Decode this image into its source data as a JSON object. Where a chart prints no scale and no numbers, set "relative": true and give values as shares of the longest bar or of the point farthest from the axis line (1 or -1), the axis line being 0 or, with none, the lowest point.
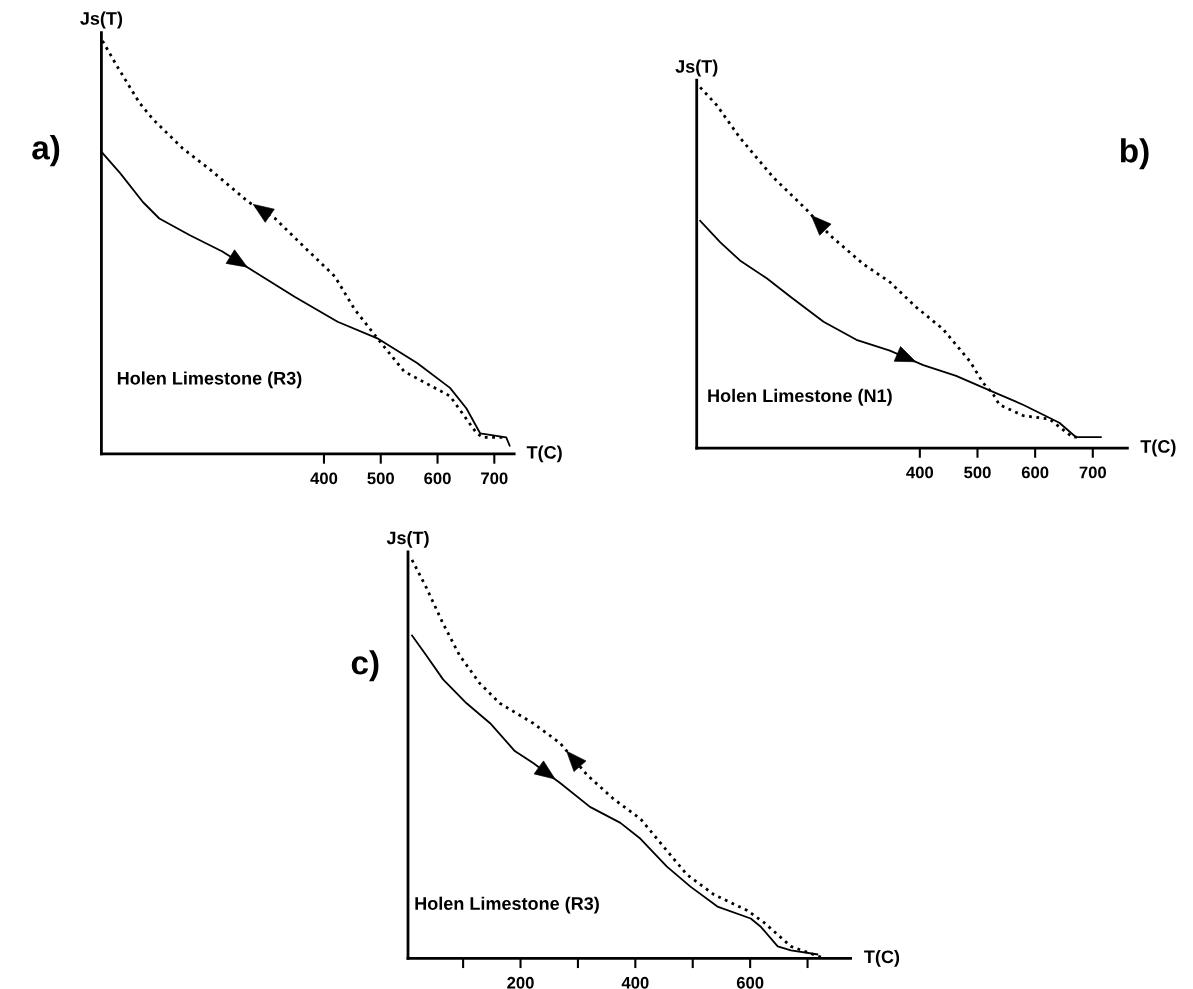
{
  "chart_data": [
    {
      "type": "line",
      "title": "a)",
      "xlabel": "T(C)",
      "ylabel": "Js(T)",
      "relative": true,
      "tick_labels": "x",
      "xlim": [
        8,
        735
      ],
      "xticks": [
        400,
        500,
        600,
        700
      ],
      "annotations": [
        "Holen Limestone (R3)"
      ],
      "series": [
        {
          "color": "#000000",
          "line_style": "dotted",
          "x": [
            10,
            35,
            75,
            99,
            151,
            198,
            267,
            314,
            366,
            419,
            454,
            494,
            541,
            622,
            669,
            680,
            721
          ],
          "values": [
            1.0,
            0.94,
            0.85,
            0.81,
            0.74,
            0.69,
            0.61,
            0.57,
            0.5,
            0.43,
            0.35,
            0.28,
            0.2,
            0.14,
            0.05,
            0.04,
            0.04
          ]
        },
        {
          "color": "#000000",
          "line_style": "solid",
          "x": [
            9,
            41,
            81,
            110,
            163,
            221,
            279,
            349,
            424,
            494,
            564,
            622,
            651,
            675,
            721,
            727
          ],
          "values": [
            0.73,
            0.68,
            0.61,
            0.57,
            0.53,
            0.49,
            0.44,
            0.38,
            0.32,
            0.28,
            0.22,
            0.16,
            0.11,
            0.05,
            0.04,
            0.02
          ]
        }
      ]
    },
    {
      "type": "line",
      "title": "b)",
      "xlabel": "T(C)",
      "ylabel": "Js(T)",
      "relative": true,
      "tick_labels": "x",
      "xlim": [
        13,
        760
      ],
      "xticks": [
        400,
        500,
        600,
        700
      ],
      "annotations": [
        "Holen Limestone (N1)"
      ],
      "series": [
        {
          "color": "#000000",
          "line_style": "dotted",
          "x": [
            19,
            48,
            88,
            146,
            204,
            244,
            302,
            348,
            394,
            440,
            487,
            510,
            527,
            538,
            579,
            625,
            665,
            677
          ],
          "values": [
            1.0,
            0.95,
            0.86,
            0.75,
            0.66,
            0.59,
            0.51,
            0.46,
            0.39,
            0.33,
            0.24,
            0.18,
            0.15,
            0.12,
            0.09,
            0.08,
            0.03,
            0.03
          ]
        },
        {
          "color": "#000000",
          "line_style": "solid",
          "x": [
            19,
            54,
            88,
            135,
            175,
            233,
            290,
            348,
            406,
            463,
            521,
            579,
            642,
            671,
            714
          ],
          "values": [
            0.63,
            0.57,
            0.52,
            0.47,
            0.42,
            0.35,
            0.3,
            0.27,
            0.23,
            0.2,
            0.16,
            0.12,
            0.07,
            0.03,
            0.03
          ]
        }
      ]
    },
    {
      "type": "line",
      "title": "c)",
      "xlabel": "T(C)",
      "ylabel": "Js(T)",
      "relative": true,
      "tick_labels": "x",
      "xlim": [
        4,
        775
      ],
      "xticks": [
        {
          "value": 100,
          "label": null
        },
        200,
        {
          "value": 300,
          "label": null
        },
        400,
        {
          "value": 500,
          "label": null
        },
        600,
        {
          "value": 700,
          "label": null
        }
      ],
      "annotations": [
        "Holen Limestone (R3)"
      ],
      "series": [
        {
          "color": "#000000",
          "line_style": "dotted",
          "x": [
            11,
            36,
            65,
            94,
            129,
            164,
            222,
            269,
            316,
            362,
            409,
            455,
            490,
            537,
            595,
            624,
            671,
            729
          ],
          "values": [
            1.0,
            0.93,
            0.84,
            0.76,
            0.69,
            0.64,
            0.59,
            0.54,
            0.46,
            0.4,
            0.35,
            0.27,
            0.21,
            0.16,
            0.12,
            0.09,
            0.03,
            0.0
          ]
        },
        {
          "color": "#000000",
          "line_style": "solid",
          "x": [
            11,
            36,
            65,
            106,
            147,
            190,
            222,
            269,
            321,
            374,
            409,
            455,
            496,
            543,
            601,
            618,
            648,
            671,
            717
          ],
          "values": [
            0.81,
            0.76,
            0.7,
            0.64,
            0.59,
            0.52,
            0.49,
            0.44,
            0.38,
            0.34,
            0.3,
            0.23,
            0.18,
            0.13,
            0.1,
            0.08,
            0.03,
            0.02,
            0.01
          ]
        }
      ]
    }
  ]
}
